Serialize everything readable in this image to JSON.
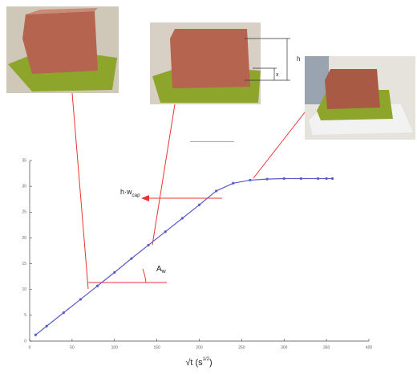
{
  "chart_data": {
    "type": "line",
    "x_label": {
      "main": "√t  (s",
      "sup": "1/2",
      "close": ")"
    },
    "annotations": [
      {
        "text": "h·w",
        "sub": "cap"
      },
      {
        "text": "A",
        "sub": "w"
      },
      {
        "text": "h"
      },
      {
        "text": "x"
      }
    ],
    "xlim": [
      0,
      400
    ],
    "xticks": [
      0,
      50,
      100,
      150,
      200,
      250,
      300,
      350,
      400
    ],
    "ylim": [
      0,
      35
    ],
    "yticks": [
      0,
      5,
      10,
      15,
      20,
      25,
      30,
      35
    ],
    "series": [
      {
        "color": "#5a5ac8",
        "x": [
          7,
          20,
          40,
          60,
          80,
          100,
          120,
          140,
          160,
          180,
          200,
          220,
          240,
          260,
          280,
          300,
          320,
          340,
          350,
          357
        ],
        "values": [
          1.2,
          2.9,
          5.5,
          8.1,
          10.7,
          13.3,
          16.0,
          18.6,
          21.2,
          23.8,
          26.4,
          29.1,
          30.6,
          31.2,
          31.4,
          31.5,
          31.5,
          31.5,
          31.5,
          31.5
        ]
      }
    ]
  }
}
